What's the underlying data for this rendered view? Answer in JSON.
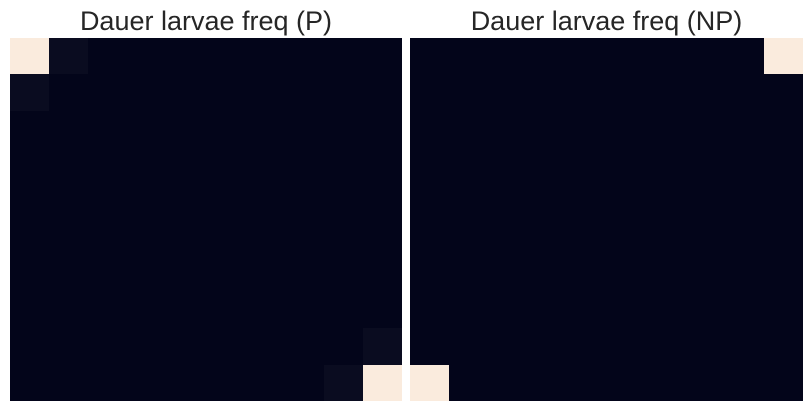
{
  "chart_data": [
    {
      "type": "heatmap",
      "title": "Dauer larvae freq (P)",
      "rows": 10,
      "cols": 10,
      "values": [
        [
          1.0,
          0.03,
          0.0,
          0.0,
          0.0,
          0.0,
          0.0,
          0.0,
          0.0,
          0.0
        ],
        [
          0.03,
          0.0,
          0.0,
          0.0,
          0.0,
          0.0,
          0.0,
          0.0,
          0.0,
          0.0
        ],
        [
          0.0,
          0.0,
          0.0,
          0.0,
          0.0,
          0.0,
          0.0,
          0.0,
          0.0,
          0.0
        ],
        [
          0.0,
          0.0,
          0.0,
          0.0,
          0.0,
          0.0,
          0.0,
          0.0,
          0.0,
          0.0
        ],
        [
          0.0,
          0.0,
          0.0,
          0.0,
          0.0,
          0.0,
          0.0,
          0.0,
          0.0,
          0.0
        ],
        [
          0.0,
          0.0,
          0.0,
          0.0,
          0.0,
          0.0,
          0.0,
          0.0,
          0.0,
          0.0
        ],
        [
          0.0,
          0.0,
          0.0,
          0.0,
          0.0,
          0.0,
          0.0,
          0.0,
          0.0,
          0.0
        ],
        [
          0.0,
          0.0,
          0.0,
          0.0,
          0.0,
          0.0,
          0.0,
          0.0,
          0.0,
          0.0
        ],
        [
          0.0,
          0.0,
          0.0,
          0.0,
          0.0,
          0.0,
          0.0,
          0.0,
          0.0,
          0.03
        ],
        [
          0.0,
          0.0,
          0.0,
          0.0,
          0.0,
          0.0,
          0.0,
          0.0,
          0.03,
          1.0
        ]
      ],
      "colorscale": [
        "#03051a",
        "#faebdd"
      ],
      "grid": false,
      "legend": "none"
    },
    {
      "type": "heatmap",
      "title": "Dauer larvae freq (NP)",
      "rows": 10,
      "cols": 10,
      "values": [
        [
          0.0,
          0.0,
          0.0,
          0.0,
          0.0,
          0.0,
          0.0,
          0.0,
          0.0,
          1.0
        ],
        [
          0.0,
          0.0,
          0.0,
          0.0,
          0.0,
          0.0,
          0.0,
          0.0,
          0.0,
          0.0
        ],
        [
          0.0,
          0.0,
          0.0,
          0.0,
          0.0,
          0.0,
          0.0,
          0.0,
          0.0,
          0.0
        ],
        [
          0.0,
          0.0,
          0.0,
          0.0,
          0.0,
          0.0,
          0.0,
          0.0,
          0.0,
          0.0
        ],
        [
          0.0,
          0.0,
          0.0,
          0.0,
          0.0,
          0.0,
          0.0,
          0.0,
          0.0,
          0.0
        ],
        [
          0.0,
          0.0,
          0.0,
          0.0,
          0.0,
          0.0,
          0.0,
          0.0,
          0.0,
          0.0
        ],
        [
          0.0,
          0.0,
          0.0,
          0.0,
          0.0,
          0.0,
          0.0,
          0.0,
          0.0,
          0.0
        ],
        [
          0.0,
          0.0,
          0.0,
          0.0,
          0.0,
          0.0,
          0.0,
          0.0,
          0.0,
          0.0
        ],
        [
          0.0,
          0.0,
          0.0,
          0.0,
          0.0,
          0.0,
          0.0,
          0.0,
          0.0,
          0.0
        ],
        [
          1.0,
          0.0,
          0.0,
          0.0,
          0.0,
          0.0,
          0.0,
          0.0,
          0.0,
          0.0
        ]
      ],
      "colorscale": [
        "#03051a",
        "#faebdd"
      ],
      "grid": false,
      "legend": "none"
    }
  ]
}
